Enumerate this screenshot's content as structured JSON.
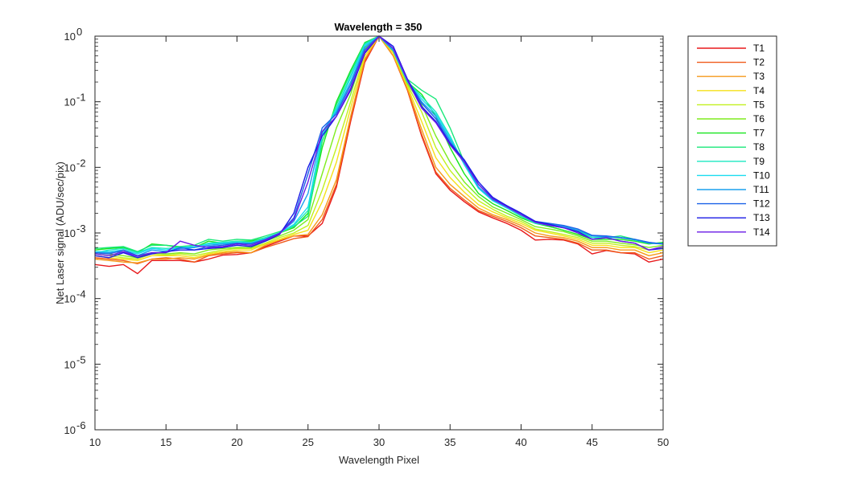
{
  "chart_data": {
    "type": "line",
    "title": "Wavelength = 350",
    "xlabel": "Wavelength Pixel",
    "ylabel": "Net Laser signal  (ADU/sec/pix)",
    "xlim": [
      10,
      50
    ],
    "ylim": [
      1e-06,
      1
    ],
    "yscale": "log",
    "xticks": [
      10,
      15,
      20,
      25,
      30,
      35,
      40,
      45,
      50
    ],
    "xtick_labels": [
      "10",
      "15",
      "20",
      "25",
      "30",
      "35",
      "40",
      "45",
      "50"
    ],
    "yticks": [
      1e-06,
      1e-05,
      0.0001,
      0.001,
      0.01,
      0.1,
      1
    ],
    "ytick_labels": [
      {
        "base": "10",
        "exp": "-6"
      },
      {
        "base": "10",
        "exp": "-5"
      },
      {
        "base": "10",
        "exp": "-4"
      },
      {
        "base": "10",
        "exp": "-3"
      },
      {
        "base": "10",
        "exp": "-2"
      },
      {
        "base": "10",
        "exp": "-1"
      },
      {
        "base": "10",
        "exp": "0"
      }
    ],
    "grid": false,
    "legend_position": "outside-right",
    "x": [
      10,
      11,
      12,
      13,
      14,
      15,
      16,
      17,
      18,
      19,
      20,
      21,
      22,
      23,
      24,
      25,
      26,
      27,
      28,
      29,
      30,
      31,
      32,
      33,
      34,
      35,
      36,
      37,
      38,
      39,
      40,
      41,
      42,
      43,
      44,
      45,
      46,
      47,
      48,
      49,
      50
    ],
    "series": [
      {
        "name": "T1",
        "color": "#e8191b",
        "values": [
          0.00033,
          0.00031,
          0.00033,
          0.00024,
          0.00038,
          0.00038,
          0.00038,
          0.00036,
          0.0004,
          0.00046,
          0.00047,
          0.0005,
          0.00062,
          0.00075,
          0.0009,
          0.0009,
          0.0014,
          0.005,
          0.05,
          0.4,
          1.0,
          0.5,
          0.15,
          0.03,
          0.008,
          0.0045,
          0.003,
          0.0021,
          0.0017,
          0.0014,
          0.0011,
          0.00078,
          0.0008,
          0.00078,
          0.00068,
          0.00048,
          0.00054,
          0.0005,
          0.00048,
          0.00036,
          0.0004
        ]
      },
      {
        "name": "T2",
        "color": "#f05a1a",
        "values": [
          0.00042,
          0.0004,
          0.00038,
          0.00034,
          0.0004,
          0.00042,
          0.0004,
          0.00036,
          0.00045,
          0.00048,
          0.0005,
          0.0005,
          0.0006,
          0.0007,
          0.00082,
          0.00088,
          0.0016,
          0.0055,
          0.055,
          0.42,
          1.0,
          0.5,
          0.15,
          0.032,
          0.0085,
          0.0048,
          0.0032,
          0.0022,
          0.0018,
          0.0015,
          0.0012,
          0.0009,
          0.00085,
          0.0008,
          0.0007,
          0.00055,
          0.00055,
          0.0005,
          0.0005,
          0.0004,
          0.00045
        ]
      },
      {
        "name": "T3",
        "color": "#f59a1b",
        "values": [
          0.0004,
          0.00038,
          0.00036,
          0.00035,
          0.0004,
          0.0004,
          0.00042,
          0.0004,
          0.00046,
          0.0005,
          0.00052,
          0.0005,
          0.00065,
          0.00078,
          0.0009,
          0.00095,
          0.0019,
          0.0065,
          0.06,
          0.45,
          1.0,
          0.5,
          0.16,
          0.038,
          0.01,
          0.0055,
          0.0036,
          0.0024,
          0.0019,
          0.0016,
          0.0013,
          0.001,
          0.0009,
          0.00085,
          0.00075,
          0.0006,
          0.0006,
          0.00055,
          0.00055,
          0.00045,
          0.0005
        ]
      },
      {
        "name": "T4",
        "color": "#f5e01a",
        "values": [
          0.00045,
          0.00042,
          0.0004,
          0.00038,
          0.00045,
          0.00045,
          0.00045,
          0.00042,
          0.00048,
          0.00052,
          0.00055,
          0.00055,
          0.00068,
          0.0008,
          0.00095,
          0.0011,
          0.003,
          0.012,
          0.08,
          0.5,
          1.0,
          0.55,
          0.17,
          0.05,
          0.014,
          0.007,
          0.0042,
          0.0027,
          0.0021,
          0.0017,
          0.0014,
          0.0011,
          0.001,
          0.0009,
          0.0008,
          0.00065,
          0.00065,
          0.0006,
          0.0006,
          0.0005,
          0.00055
        ]
      },
      {
        "name": "T5",
        "color": "#c2f01f",
        "values": [
          0.00048,
          0.00045,
          0.00042,
          0.0004,
          0.00048,
          0.00046,
          0.00048,
          0.00045,
          0.0005,
          0.00055,
          0.00058,
          0.00058,
          0.0007,
          0.00085,
          0.001,
          0.0013,
          0.0045,
          0.02,
          0.1,
          0.55,
          1.0,
          0.58,
          0.18,
          0.07,
          0.02,
          0.009,
          0.005,
          0.0031,
          0.0023,
          0.0018,
          0.0015,
          0.00115,
          0.00105,
          0.00095,
          0.00085,
          0.0007,
          0.0007,
          0.00065,
          0.00062,
          0.00055,
          0.0006
        ]
      },
      {
        "name": "T6",
        "color": "#7eec1f",
        "values": [
          0.0005,
          0.00048,
          0.00045,
          0.00042,
          0.0005,
          0.00048,
          0.0005,
          0.00048,
          0.00055,
          0.00058,
          0.0006,
          0.0006,
          0.00075,
          0.0009,
          0.0011,
          0.0016,
          0.008,
          0.04,
          0.13,
          0.65,
          1.0,
          0.6,
          0.19,
          0.09,
          0.03,
          0.012,
          0.006,
          0.0036,
          0.0025,
          0.002,
          0.0016,
          0.00125,
          0.00115,
          0.00105,
          0.0009,
          0.00075,
          0.00075,
          0.0007,
          0.00066,
          0.0006,
          0.00065
        ]
      },
      {
        "name": "T7",
        "color": "#17e61d",
        "values": [
          0.00055,
          0.00058,
          0.0006,
          0.0005,
          0.00068,
          0.00065,
          0.0006,
          0.0006,
          0.00075,
          0.0007,
          0.00075,
          0.00075,
          0.00085,
          0.001,
          0.0012,
          0.002,
          0.02,
          0.1,
          0.3,
          0.8,
          1.0,
          0.6,
          0.2,
          0.13,
          0.06,
          0.02,
          0.008,
          0.004,
          0.0028,
          0.0022,
          0.0017,
          0.0014,
          0.00125,
          0.0011,
          0.00095,
          0.0008,
          0.0008,
          0.0008,
          0.00075,
          0.00068,
          0.00072
        ]
      },
      {
        "name": "T8",
        "color": "#19e87a",
        "values": [
          0.00058,
          0.0006,
          0.00062,
          0.00052,
          0.00065,
          0.00065,
          0.00062,
          0.00065,
          0.0008,
          0.00075,
          0.0008,
          0.00078,
          0.0009,
          0.00105,
          0.00125,
          0.0018,
          0.025,
          0.09,
          0.28,
          0.78,
          1.0,
          0.62,
          0.22,
          0.15,
          0.11,
          0.04,
          0.012,
          0.005,
          0.0032,
          0.0024,
          0.0018,
          0.00145,
          0.0013,
          0.0012,
          0.0011,
          0.00085,
          0.00085,
          0.0009,
          0.0008,
          0.0007,
          0.0007
        ]
      },
      {
        "name": "T9",
        "color": "#1be8c2",
        "values": [
          0.0005,
          0.00055,
          0.00058,
          0.0005,
          0.0006,
          0.00058,
          0.0006,
          0.0006,
          0.0007,
          0.00072,
          0.00075,
          0.00072,
          0.00085,
          0.001,
          0.0013,
          0.0022,
          0.03,
          0.08,
          0.25,
          0.75,
          1.0,
          0.6,
          0.2,
          0.12,
          0.07,
          0.03,
          0.011,
          0.0048,
          0.0031,
          0.0024,
          0.0018,
          0.0014,
          0.0013,
          0.0012,
          0.00105,
          0.00085,
          0.00085,
          0.00085,
          0.00078,
          0.0007,
          0.00068
        ]
      },
      {
        "name": "T10",
        "color": "#1bdcf0",
        "values": [
          0.00052,
          0.00052,
          0.00055,
          0.00048,
          0.00058,
          0.00055,
          0.0006,
          0.00062,
          0.00068,
          0.0007,
          0.00072,
          0.0007,
          0.00082,
          0.001,
          0.00135,
          0.0025,
          0.032,
          0.075,
          0.23,
          0.72,
          1.0,
          0.6,
          0.2,
          0.11,
          0.065,
          0.028,
          0.011,
          0.0048,
          0.0031,
          0.0024,
          0.0019,
          0.00145,
          0.00135,
          0.00125,
          0.0011,
          0.0009,
          0.00088,
          0.00085,
          0.0008,
          0.00072,
          0.00068
        ]
      },
      {
        "name": "T11",
        "color": "#1ba0ee",
        "values": [
          0.0005,
          0.0005,
          0.00052,
          0.00045,
          0.00055,
          0.00052,
          0.00058,
          0.0006,
          0.00065,
          0.00068,
          0.0007,
          0.0007,
          0.0008,
          0.001,
          0.0015,
          0.004,
          0.035,
          0.07,
          0.2,
          0.68,
          1.0,
          0.6,
          0.21,
          0.1,
          0.06,
          0.026,
          0.012,
          0.005,
          0.0032,
          0.0025,
          0.0019,
          0.0015,
          0.00135,
          0.00125,
          0.0011,
          0.0009,
          0.00088,
          0.00085,
          0.0008,
          0.0007,
          0.00068
        ]
      },
      {
        "name": "T12",
        "color": "#1b62e8",
        "values": [
          0.0005,
          0.00048,
          0.00055,
          0.00045,
          0.0005,
          0.0005,
          0.0006,
          0.00055,
          0.00062,
          0.00065,
          0.0007,
          0.00068,
          0.0008,
          0.001,
          0.0017,
          0.008,
          0.04,
          0.065,
          0.18,
          0.62,
          1.0,
          0.65,
          0.22,
          0.095,
          0.055,
          0.024,
          0.013,
          0.0055,
          0.0034,
          0.0026,
          0.002,
          0.0015,
          0.0014,
          0.0013,
          0.00115,
          0.00092,
          0.0009,
          0.00085,
          0.0008,
          0.00072,
          0.00068
        ]
      },
      {
        "name": "T13",
        "color": "#1a1ae6",
        "values": [
          0.00045,
          0.00042,
          0.0005,
          0.00042,
          0.00048,
          0.00052,
          0.00055,
          0.00055,
          0.00058,
          0.0006,
          0.00065,
          0.00062,
          0.00075,
          0.00095,
          0.002,
          0.01,
          0.03,
          0.06,
          0.15,
          0.55,
          1.0,
          0.7,
          0.22,
          0.085,
          0.05,
          0.023,
          0.013,
          0.006,
          0.0035,
          0.0026,
          0.002,
          0.0015,
          0.00135,
          0.0012,
          0.00105,
          0.0008,
          0.00085,
          0.00075,
          0.0007,
          0.00055,
          0.00058
        ]
      },
      {
        "name": "T14",
        "color": "#6a1ae6",
        "values": [
          0.00048,
          0.00045,
          0.00052,
          0.00044,
          0.0005,
          0.0005,
          0.00075,
          0.00065,
          0.0006,
          0.00062,
          0.00068,
          0.00065,
          0.00078,
          0.00098,
          0.0016,
          0.006,
          0.035,
          0.06,
          0.16,
          0.58,
          1.0,
          0.65,
          0.21,
          0.08,
          0.048,
          0.022,
          0.012,
          0.0055,
          0.0033,
          0.0025,
          0.0019,
          0.00145,
          0.0013,
          0.0012,
          0.001,
          0.0008,
          0.00085,
          0.00075,
          0.0007,
          0.00055,
          0.00062
        ]
      }
    ]
  }
}
